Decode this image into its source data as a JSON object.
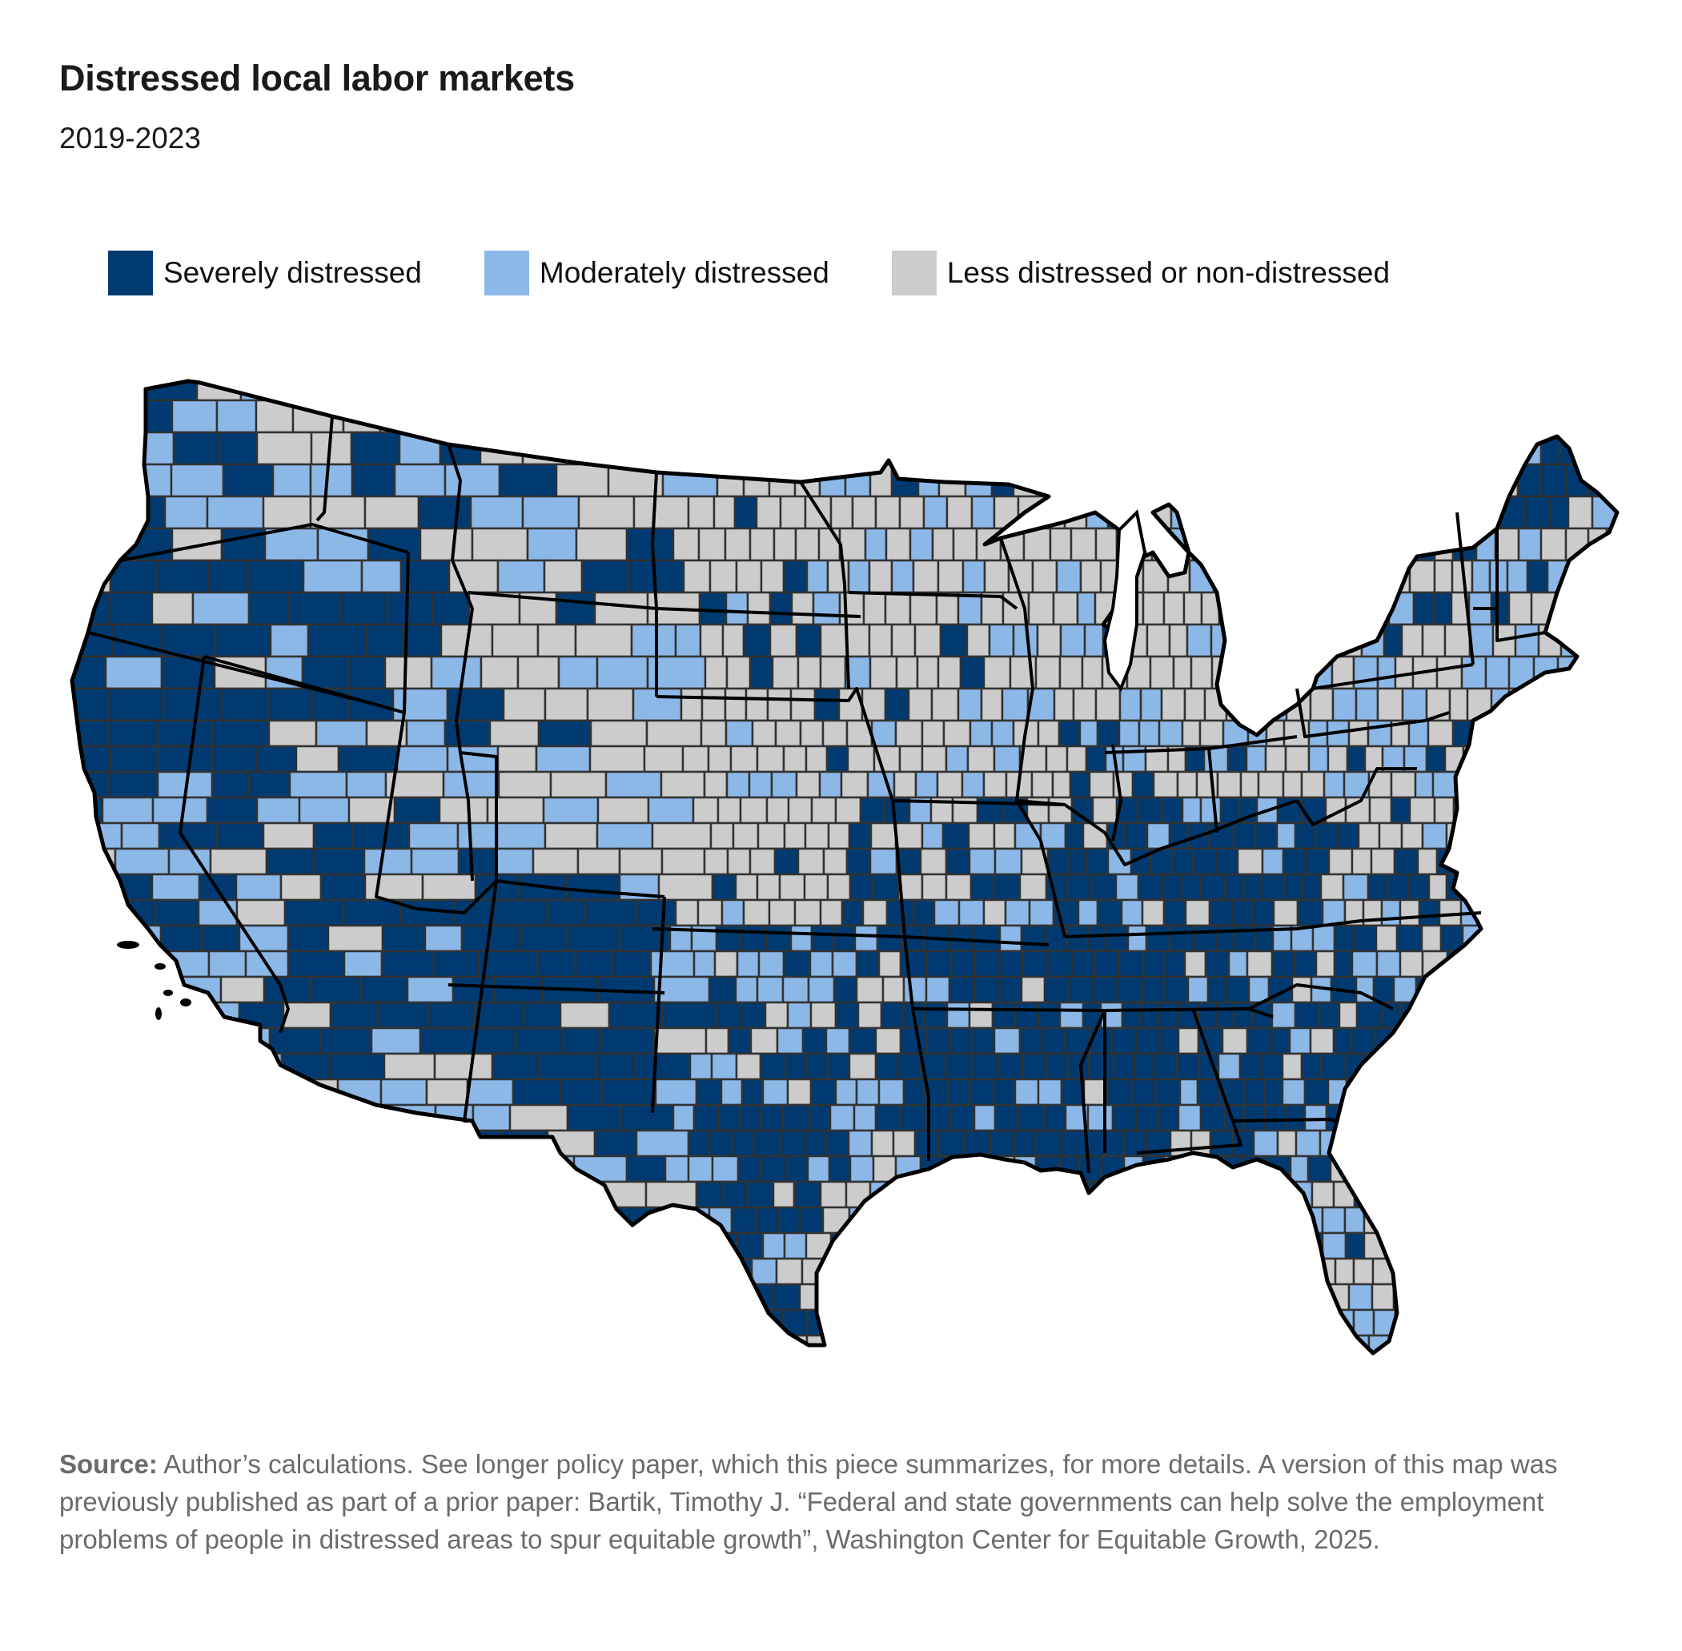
{
  "header": {
    "title": "Distressed local labor markets",
    "subtitle": "2019-2023"
  },
  "legend": [
    {
      "label": "Severely distressed",
      "color": "#003a70"
    },
    {
      "label": "Moderately distressed",
      "color": "#8cb8e8"
    },
    {
      "label": "Less distressed or non-distressed",
      "color": "#cccccc"
    }
  ],
  "footer": {
    "source_label": "Source:",
    "source_text": " Author’s calculations. See longer policy paper, which this piece summarizes, for more details. A version of this map was previously published as part of a prior paper: Bartik, Timothy J. “Federal and state governments can help solve the employment problems of people in distressed areas to spur equitable growth”, Washington Center for Equitable Growth, 2025."
  },
  "chart_data": {
    "type": "choropleth",
    "title": "Distressed local labor markets",
    "subtitle": "2019-2023",
    "geography": "Contiguous United States, counties",
    "categories": [
      "Severely distressed",
      "Moderately distressed",
      "Less distressed or non-distressed"
    ],
    "colors": {
      "severe": "#003a70",
      "moderate": "#8cb8e8",
      "less": "#cccccc",
      "county_border": "#333333",
      "state_border": "#000000"
    },
    "regional_pattern": [
      {
        "region": "Pacific Northwest coast (WA/OR coast, N. California)",
        "dominant": "severe"
      },
      {
        "region": "Eastern Washington / Idaho panhandle",
        "dominant": "mixed moderate/severe"
      },
      {
        "region": "Nevada",
        "dominant": "severe"
      },
      {
        "region": "Southern California / SE California",
        "dominant": "moderate"
      },
      {
        "region": "Arizona & New Mexico",
        "dominant": "severe"
      },
      {
        "region": "Utah",
        "dominant": "moderate"
      },
      {
        "region": "Montana / Wyoming / Colorado",
        "dominant": "less"
      },
      {
        "region": "Great Plains (Dakotas, Nebraska, Kansas, Iowa)",
        "dominant": "less"
      },
      {
        "region": "Texas / Oklahoma",
        "dominant": "mixed severe/moderate"
      },
      {
        "region": "Deep South (AR, LA, MS, AL, GA)",
        "dominant": "severe"
      },
      {
        "region": "Appalachia (KY, WV, TN)",
        "dominant": "severe"
      },
      {
        "region": "Upper Midwest (MN, WI, MI lower)",
        "dominant": "less with moderate"
      },
      {
        "region": "Northeast (NY, PA, New England)",
        "dominant": "less/moderate; northern NY & Maine severe"
      },
      {
        "region": "Florida",
        "dominant": "mixed; south Florida less"
      }
    ],
    "seed": 7
  }
}
